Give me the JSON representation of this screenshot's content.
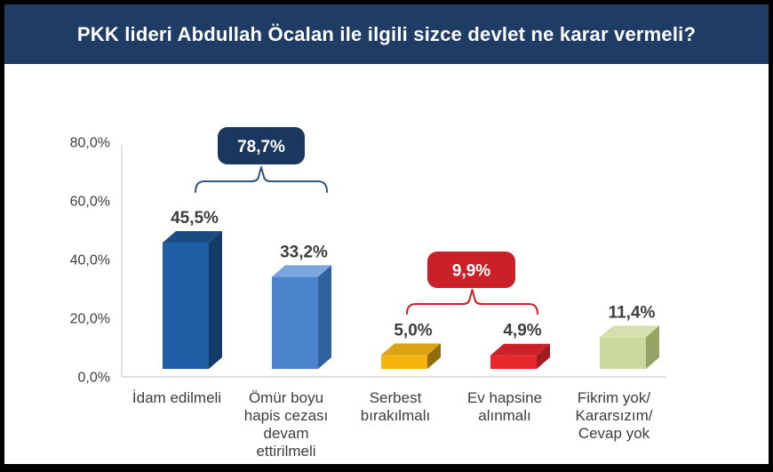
{
  "frame": {
    "border_color": "#000000",
    "background": "#ffffff"
  },
  "header": {
    "title": "PKK lideri Abdullah Öcalan ile ilgili sizce devlet ne karar vermeli?",
    "background": "#1e3c64",
    "text_color": "#ffffff"
  },
  "chart_data": {
    "type": "bar",
    "style": "3d-column",
    "title": "",
    "xlabel": "",
    "ylabel": "",
    "ylim": [
      0,
      80
    ],
    "grid": false,
    "legend": "none",
    "categories": [
      "İdam edilmeli",
      "Ömür boyu hapis cezası devam ettirilmeli",
      "Serbest bırakılmalı",
      "Ev hapsine alınmalı",
      "Fikrim yok/ Kararsızım/ Cevap yok"
    ],
    "category_label_lines": [
      [
        "İdam edilmeli"
      ],
      [
        "Ömür boyu",
        "hapis cezası",
        "devam",
        "ettirilmeli"
      ],
      [
        "Serbest",
        "bırakılmalı"
      ],
      [
        "Ev hapsine",
        "alınmalı"
      ],
      [
        "Fikrim yok/",
        "Kararsızım/",
        "Cevap yok"
      ]
    ],
    "values": [
      45.5,
      33.2,
      5.0,
      4.9,
      11.4
    ],
    "value_labels": [
      "45,5%",
      "33,2%",
      "5,0%",
      "4,9%",
      "11,4%"
    ],
    "bar_colors": [
      {
        "front": "#1f5da4",
        "top": "#1a4b82",
        "side": "#143a68"
      },
      {
        "front": "#4c84cc",
        "top": "#7aa6dd",
        "side": "#2e639f"
      },
      {
        "front": "#f7b30d",
        "top": "#d9a314",
        "side": "#8f6c0a"
      },
      {
        "front": "#e8282e",
        "top": "#cd2127",
        "side": "#a21b1f"
      },
      {
        "front": "#cbd89e",
        "top": "#d6e0ae",
        "side": "#93a465"
      }
    ],
    "yticks": {
      "values": [
        0,
        20,
        40,
        60,
        80
      ],
      "labels": [
        "0,0%",
        "20,0%",
        "40,0%",
        "60,0%",
        "80,0%"
      ]
    },
    "annotations": [
      {
        "label": "78,7%",
        "covers_categories": [
          0,
          1
        ],
        "box_color": "#19375f",
        "bracket_color": "#33557e",
        "text_color": "#ffffff"
      },
      {
        "label": "9,9%",
        "covers_categories": [
          2,
          3
        ],
        "box_color": "#cb2027",
        "bracket_color": "#cb2027",
        "text_color": "#ffffff"
      }
    ],
    "axis_color": "#d6d6d6",
    "text_color": "#3d3d3d"
  }
}
